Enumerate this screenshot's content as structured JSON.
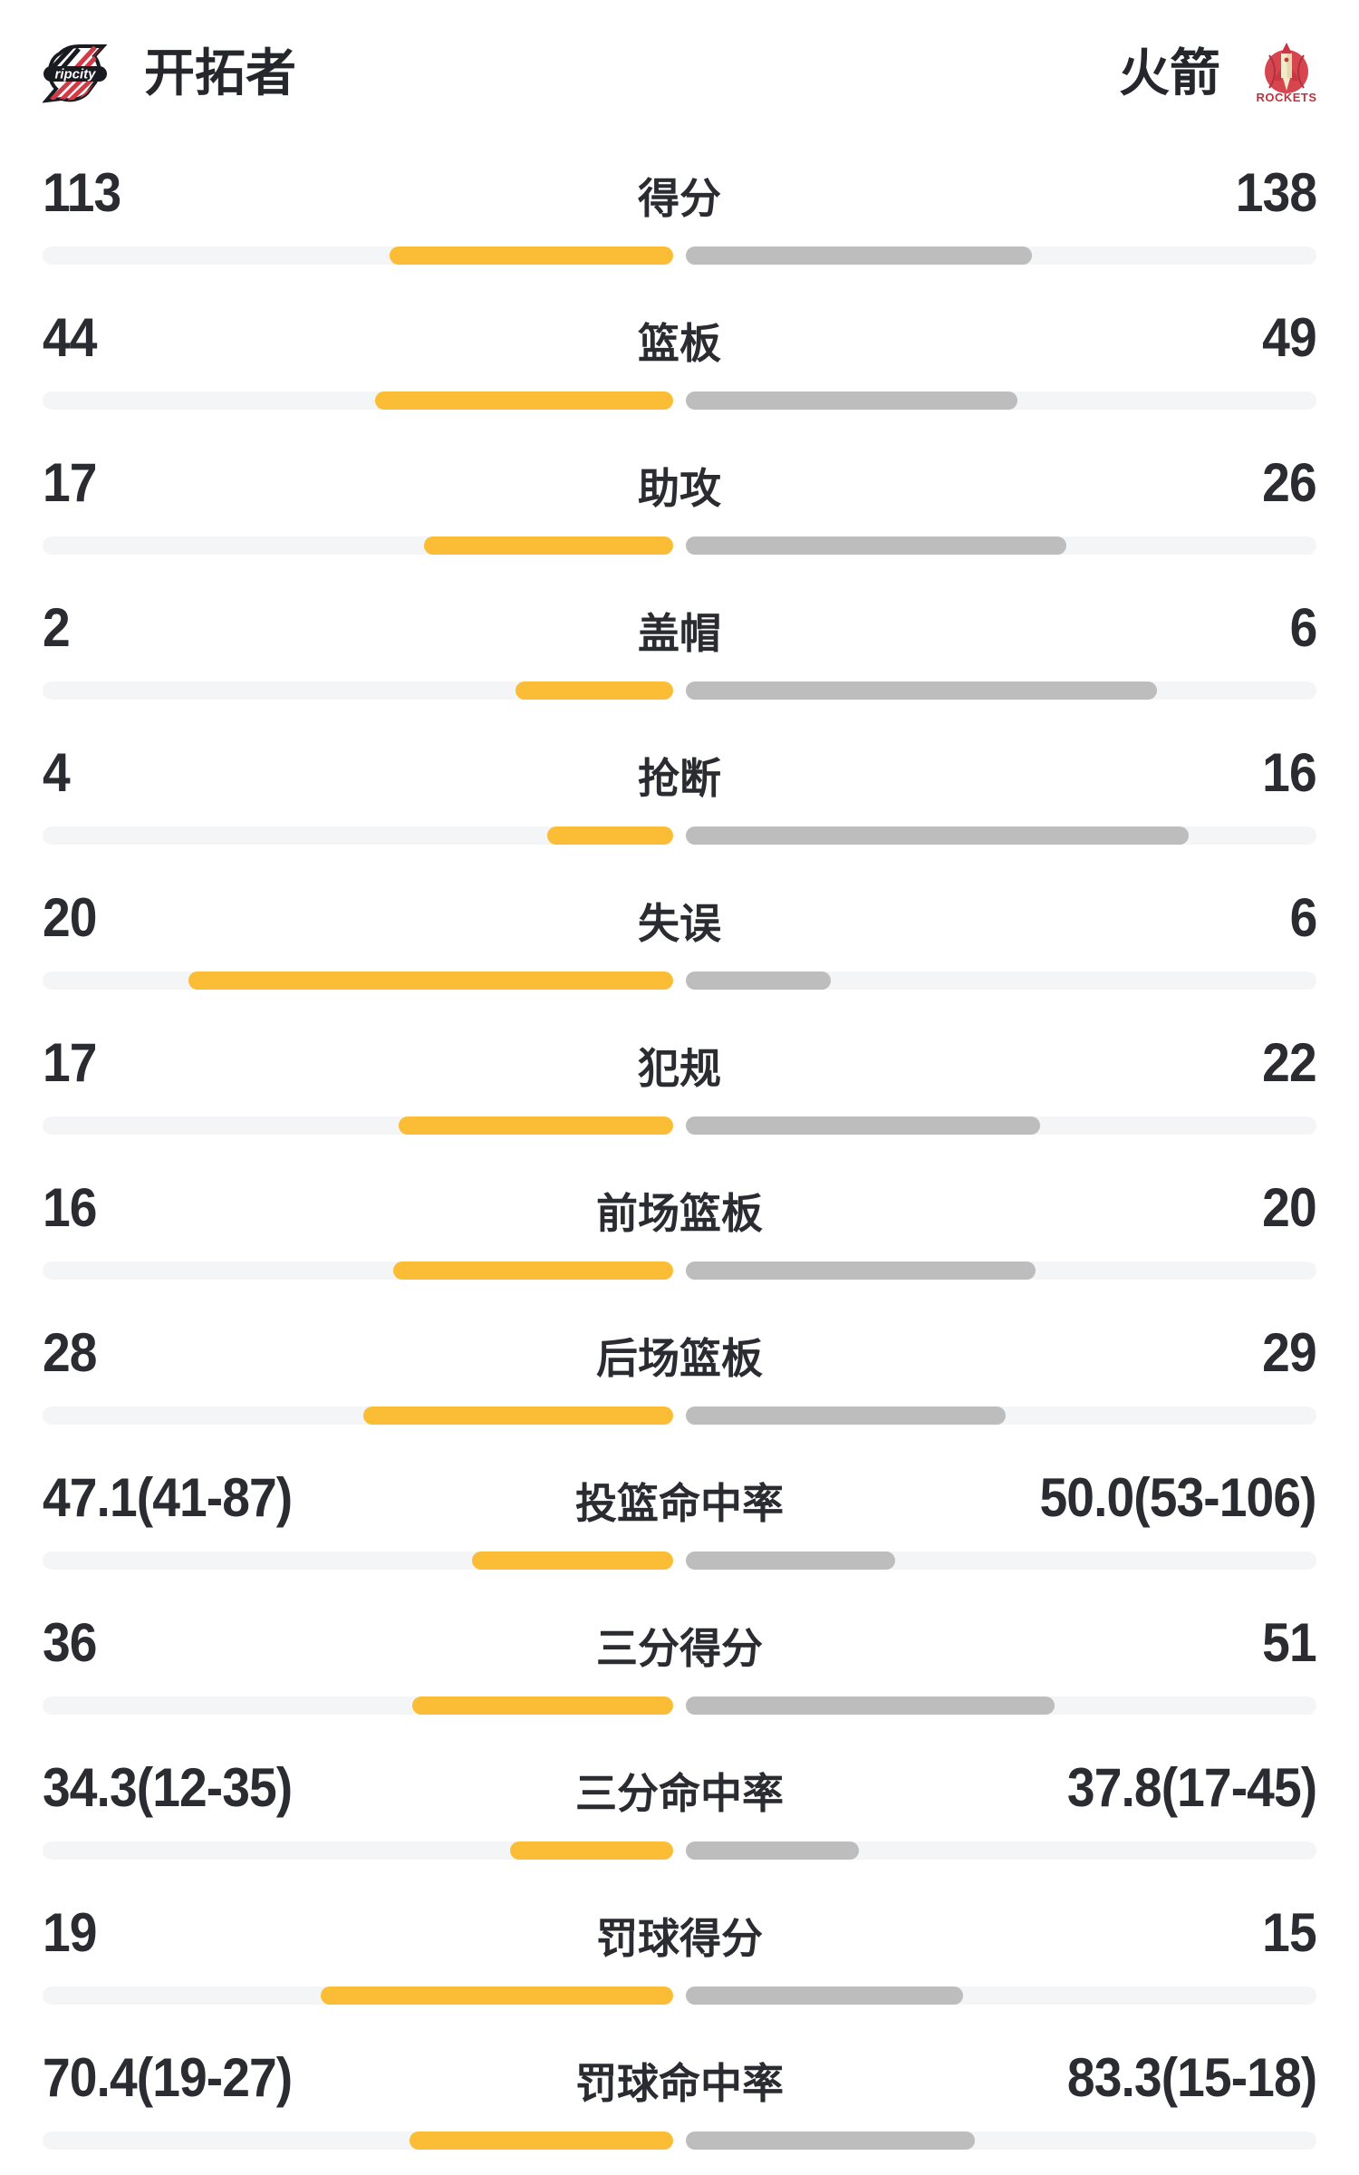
{
  "header": {
    "left_team": {
      "name": "开拓者",
      "logo_text": "ripcity"
    },
    "right_team": {
      "name": "火箭",
      "logo_text": "ROCKETS"
    }
  },
  "colors": {
    "left_bar": "#fbbd35",
    "right_bar": "#bdbdbd",
    "track": "#f4f5f7",
    "text": "#2b2c31",
    "blazers_red": "#d23a45",
    "blazers_black": "#191b20",
    "rockets_red": "#d7454e",
    "rockets_dark_red": "#bc3440",
    "rockets_cream": "#f2eacb"
  },
  "chart_data": {
    "type": "bar",
    "layout": "paired-horizontal-bars-from-center",
    "legend_left": "开拓者",
    "legend_right": "火箭",
    "rows": [
      {
        "label": "得分",
        "left": "113",
        "right": "138",
        "left_pct": 45.0,
        "right_pct": 54.9
      },
      {
        "label": "篮板",
        "left": "44",
        "right": "49",
        "left_pct": 47.3,
        "right_pct": 52.6
      },
      {
        "label": "助攻",
        "left": "17",
        "right": "26",
        "left_pct": 39.5,
        "right_pct": 60.3
      },
      {
        "label": "盖帽",
        "left": "2",
        "right": "6",
        "left_pct": 25.0,
        "right_pct": 74.7
      },
      {
        "label": "抢断",
        "left": "4",
        "right": "16",
        "left_pct": 20.0,
        "right_pct": 79.7
      },
      {
        "label": "失误",
        "left": "20",
        "right": "6",
        "left_pct": 76.9,
        "right_pct": 23.0
      },
      {
        "label": "犯规",
        "left": "17",
        "right": "22",
        "left_pct": 43.6,
        "right_pct": 56.2
      },
      {
        "label": "前场篮板",
        "left": "16",
        "right": "20",
        "left_pct": 44.4,
        "right_pct": 55.5
      },
      {
        "label": "后场篮板",
        "left": "28",
        "right": "29",
        "left_pct": 49.1,
        "right_pct": 50.7
      },
      {
        "label": "投篮命中率",
        "left": "47.1(41-87)",
        "right": "50.0(53-106)",
        "left_pct": 31.9,
        "right_pct": 33.2
      },
      {
        "label": "三分得分",
        "left": "36",
        "right": "51",
        "left_pct": 41.4,
        "right_pct": 58.5
      },
      {
        "label": "三分命中率",
        "left": "34.3(12-35)",
        "right": "37.8(17-45)",
        "left_pct": 25.9,
        "right_pct": 27.4
      },
      {
        "label": "罚球得分",
        "left": "19",
        "right": "15",
        "left_pct": 55.9,
        "right_pct": 44.0
      },
      {
        "label": "罚球命中率",
        "left": "70.4(19-27)",
        "right": "83.3(15-18)",
        "left_pct": 41.8,
        "right_pct": 45.8
      }
    ]
  }
}
